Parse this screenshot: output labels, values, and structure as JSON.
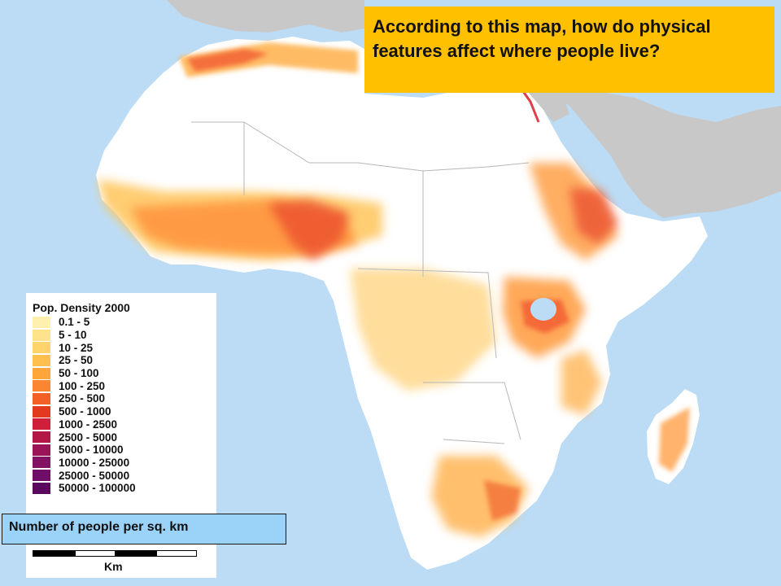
{
  "question": {
    "text": "According to this map, how do physical features affect where people live?",
    "background": "#ffc000"
  },
  "legend": {
    "title": "Pop. Density 2000",
    "items": [
      {
        "label": "0.1 - 5",
        "color": "#fff0b0"
      },
      {
        "label": "5 - 10",
        "color": "#ffe38a"
      },
      {
        "label": "10 - 25",
        "color": "#ffd46a"
      },
      {
        "label": "25 - 50",
        "color": "#ffc04d"
      },
      {
        "label": "50 - 100",
        "color": "#ffa63a"
      },
      {
        "label": "100 - 250",
        "color": "#fb8530"
      },
      {
        "label": "250 - 500",
        "color": "#f26025"
      },
      {
        "label": "500 - 1000",
        "color": "#e23a1f"
      },
      {
        "label": "1000 - 2500",
        "color": "#cf1f3a"
      },
      {
        "label": "2500 - 5000",
        "color": "#b31647"
      },
      {
        "label": "5000 - 10000",
        "color": "#9a1457"
      },
      {
        "label": "10000 - 25000",
        "color": "#831264"
      },
      {
        "label": "25000 - 50000",
        "color": "#6e0e66"
      },
      {
        "label": "50000 - 100000",
        "color": "#5a0a5e"
      }
    ]
  },
  "units_caption": "Number of people per sq. km",
  "scale_unit": "Km",
  "map_colors": {
    "ocean": "#bcdcf5",
    "land_other": "#c8c8c8",
    "land_africa": "#ffffff"
  }
}
